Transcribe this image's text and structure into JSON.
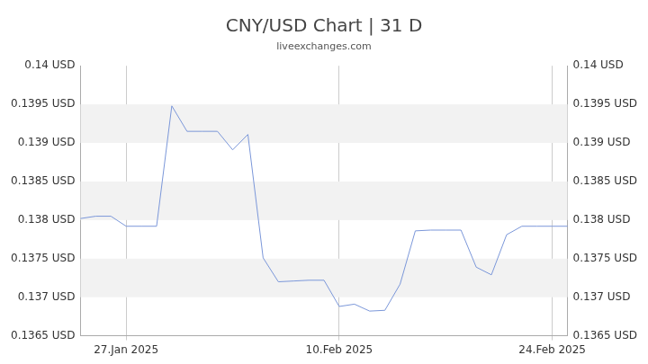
{
  "chart_data": {
    "type": "line",
    "title": "CNY/USD Chart | 31 D",
    "subtitle": "liveexchanges.com",
    "categories": [
      null,
      null,
      null,
      "27.Jan 2025",
      null,
      null,
      null,
      null,
      null,
      null,
      null,
      null,
      null,
      null,
      null,
      null,
      null,
      "10.Feb 2025",
      null,
      null,
      null,
      null,
      null,
      null,
      null,
      null,
      null,
      null,
      null,
      null,
      null,
      "24.Feb 2025",
      null
    ],
    "values": [
      0.13802,
      0.13805,
      0.13805,
      0.13792,
      0.13792,
      0.13792,
      0.13948,
      0.13915,
      0.13915,
      0.13915,
      0.13891,
      0.13911,
      0.13751,
      0.1372,
      0.13721,
      0.13722,
      0.13722,
      0.13688,
      0.13691,
      0.13682,
      0.13683,
      0.13717,
      0.13786,
      0.13787,
      0.13787,
      0.13787,
      0.13739,
      0.13729,
      0.13781,
      0.13792,
      0.13792,
      0.13792,
      0.13792
    ],
    "color": "#7b97d9",
    "ylim": [
      0.1365,
      0.14
    ],
    "yticks": [
      {
        "value": 0.1365,
        "label": "0.1365 USD"
      },
      {
        "value": 0.137,
        "label": "0.137 USD"
      },
      {
        "value": 0.1375,
        "label": "0.1375 USD"
      },
      {
        "value": 0.138,
        "label": "0.138 USD"
      },
      {
        "value": 0.1385,
        "label": "0.1385 USD"
      },
      {
        "value": 0.139,
        "label": "0.139 USD"
      },
      {
        "value": 0.1395,
        "label": "0.1395 USD"
      },
      {
        "value": 0.14,
        "label": "0.14 USD"
      }
    ],
    "grid": true
  }
}
